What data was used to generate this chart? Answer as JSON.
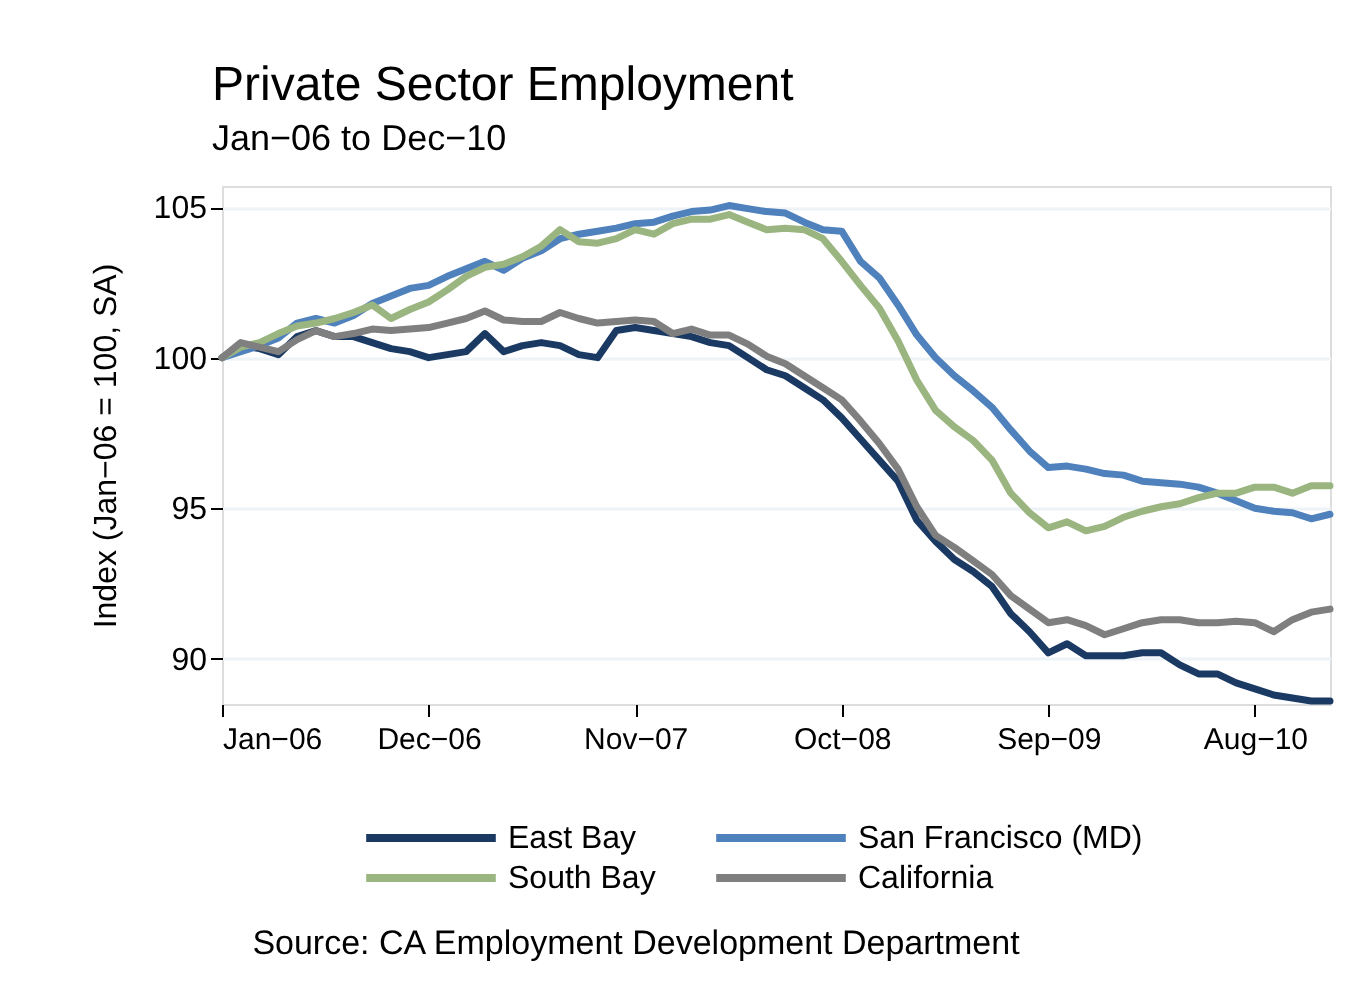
{
  "chart_data": {
    "type": "line",
    "title": "Private Sector Employment",
    "subtitle": "Jan−06 to Dec−10",
    "ylabel": "Index (Jan−06 = 100, SA)",
    "annotations": [
      "Source: CA Employment Development Department"
    ],
    "x": [
      "2006-01",
      "2006-02",
      "2006-03",
      "2006-04",
      "2006-05",
      "2006-06",
      "2006-07",
      "2006-08",
      "2006-09",
      "2006-10",
      "2006-11",
      "2006-12",
      "2007-01",
      "2007-02",
      "2007-03",
      "2007-04",
      "2007-05",
      "2007-06",
      "2007-07",
      "2007-08",
      "2007-09",
      "2007-10",
      "2007-11",
      "2007-12",
      "2008-01",
      "2008-02",
      "2008-03",
      "2008-04",
      "2008-05",
      "2008-06",
      "2008-07",
      "2008-08",
      "2008-09",
      "2008-10",
      "2008-11",
      "2008-12",
      "2009-01",
      "2009-02",
      "2009-03",
      "2009-04",
      "2009-05",
      "2009-06",
      "2009-07",
      "2009-08",
      "2009-09",
      "2009-10",
      "2009-11",
      "2009-12",
      "2010-01",
      "2010-02",
      "2010-03",
      "2010-04",
      "2010-05",
      "2010-06",
      "2010-07",
      "2010-08",
      "2010-09",
      "2010-10",
      "2010-11",
      "2010-12"
    ],
    "xlim": [
      "2006-01",
      "2010-12"
    ],
    "xticks": [
      {
        "value": "2006-01",
        "label": "Jan−06"
      },
      {
        "value": "2006-12",
        "label": "Dec−06"
      },
      {
        "value": "2007-11",
        "label": "Nov−07"
      },
      {
        "value": "2008-10",
        "label": "Oct−08"
      },
      {
        "value": "2009-09",
        "label": "Sep−09"
      },
      {
        "value": "2010-08",
        "label": "Aug−10"
      }
    ],
    "ylim": [
      88.5,
      105.7
    ],
    "yticks": [
      90,
      95,
      100,
      105
    ],
    "grid": "y",
    "legend": "bottom",
    "line_style": "solid",
    "series": [
      {
        "name": "East Bay",
        "color": "#1b3a63",
        "values": [
          100,
          100.4,
          100.3,
          100.1,
          100.7,
          100.9,
          100.7,
          100.7,
          100.5,
          100.3,
          100.2,
          100.0,
          100.1,
          100.2,
          100.8,
          100.2,
          100.4,
          100.5,
          100.4,
          100.1,
          100.0,
          100.9,
          101.0,
          100.9,
          100.8,
          100.7,
          100.5,
          100.4,
          100.0,
          99.6,
          99.4,
          99.0,
          98.6,
          98.0,
          97.3,
          96.6,
          95.9,
          94.6,
          93.9,
          93.3,
          92.9,
          92.4,
          91.5,
          90.9,
          90.2,
          90.5,
          90.1,
          90.1,
          90.1,
          90.2,
          90.2,
          89.8,
          89.5,
          89.5,
          89.2,
          89.0,
          88.8,
          88.7,
          88.6,
          88.6
        ]
      },
      {
        "name": "San Francisco (MD)",
        "color": "#4f81bd",
        "values": [
          100,
          100.2,
          100.4,
          100.65,
          101.15,
          101.3,
          101.15,
          101.4,
          101.8,
          102.05,
          102.3,
          102.4,
          102.7,
          102.95,
          103.2,
          102.9,
          103.3,
          103.55,
          103.95,
          104.1,
          104.2,
          104.3,
          104.45,
          104.5,
          104.7,
          104.85,
          104.9,
          105.05,
          104.95,
          104.85,
          104.8,
          104.5,
          104.25,
          104.2,
          103.2,
          102.65,
          101.75,
          100.75,
          100.0,
          99.4,
          98.9,
          98.35,
          97.6,
          96.9,
          96.35,
          96.4,
          96.3,
          96.15,
          96.1,
          95.9,
          95.85,
          95.8,
          95.7,
          95.5,
          95.25,
          95.0,
          94.9,
          94.85,
          94.65,
          94.8
        ]
      },
      {
        "name": "South Bay",
        "color": "#9bb581",
        "values": [
          100,
          100.35,
          100.5,
          100.8,
          101.05,
          101.15,
          101.3,
          101.5,
          101.75,
          101.3,
          101.6,
          101.85,
          102.25,
          102.7,
          103.0,
          103.1,
          103.35,
          103.7,
          104.25,
          103.85,
          103.8,
          103.95,
          104.25,
          104.1,
          104.45,
          104.6,
          104.6,
          104.75,
          104.5,
          104.25,
          104.3,
          104.25,
          103.95,
          103.2,
          102.4,
          101.65,
          100.55,
          99.25,
          98.25,
          97.7,
          97.25,
          96.6,
          95.5,
          94.85,
          94.35,
          94.55,
          94.25,
          94.4,
          94.7,
          94.9,
          95.05,
          95.15,
          95.35,
          95.5,
          95.5,
          95.7,
          95.7,
          95.5,
          95.75,
          95.75
        ]
      },
      {
        "name": "California",
        "color": "#7f7f7f",
        "values": [
          100,
          100.5,
          100.35,
          100.2,
          100.6,
          100.9,
          100.7,
          100.8,
          100.95,
          100.9,
          100.95,
          101.0,
          101.15,
          101.3,
          101.55,
          101.25,
          101.2,
          101.2,
          101.5,
          101.3,
          101.15,
          101.2,
          101.25,
          101.2,
          100.8,
          100.95,
          100.75,
          100.75,
          100.45,
          100.05,
          99.8,
          99.4,
          99.0,
          98.6,
          97.9,
          97.15,
          96.3,
          95.05,
          94.1,
          93.7,
          93.25,
          92.8,
          92.1,
          91.65,
          91.2,
          91.3,
          91.1,
          90.8,
          91.0,
          91.2,
          91.3,
          91.3,
          91.2,
          91.2,
          91.25,
          91.2,
          90.9,
          91.3,
          91.55,
          91.65
        ]
      }
    ]
  }
}
